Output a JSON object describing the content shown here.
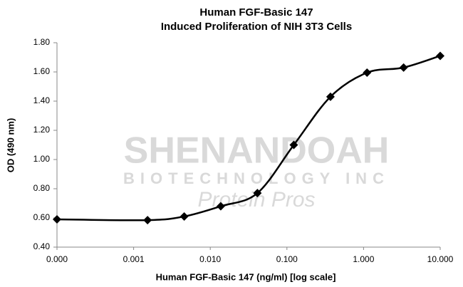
{
  "chart_data": {
    "type": "line",
    "title": [
      "Human FGF-Basic 147",
      "Induced Proliferation of NIH 3T3 Cells"
    ],
    "x_label": "Human FGF-Basic 147 (ng/ml) [log scale]",
    "y_label": "OD (490 nm)",
    "watermark": [
      "SHENANDOAH",
      "BIOTECHNOLOGY INC",
      "Protein Pros"
    ],
    "x_log": true,
    "x": [
      0.0001,
      0.00152,
      0.00457,
      0.0137,
      0.0412,
      0.123,
      0.37,
      1.11,
      3.33,
      10
    ],
    "series": [
      {
        "name": "OD",
        "color": "#000000",
        "values": [
          0.59,
          0.585,
          0.61,
          0.68,
          0.77,
          1.1,
          1.43,
          1.595,
          1.63,
          1.71
        ]
      }
    ],
    "xlim": [
      0.0001,
      10
    ],
    "xticks": [
      {
        "value": 0.0001,
        "label": "0.000"
      },
      {
        "value": 0.001,
        "label": "0.001"
      },
      {
        "value": 0.01,
        "label": "0.010"
      },
      {
        "value": 0.1,
        "label": "0.100"
      },
      {
        "value": 1,
        "label": "1.000"
      },
      {
        "value": 10,
        "label": "10.000"
      }
    ],
    "ylim": [
      0.4,
      1.8
    ],
    "yticks": [
      {
        "value": 0.4,
        "label": "0.40"
      },
      {
        "value": 0.6,
        "label": "0.60"
      },
      {
        "value": 0.8,
        "label": "0.80"
      },
      {
        "value": 1.0,
        "label": "1.00"
      },
      {
        "value": 1.2,
        "label": "1.20"
      },
      {
        "value": 1.4,
        "label": "1.40"
      },
      {
        "value": 1.6,
        "label": "1.60"
      },
      {
        "value": 1.8,
        "label": "1.80"
      }
    ]
  }
}
